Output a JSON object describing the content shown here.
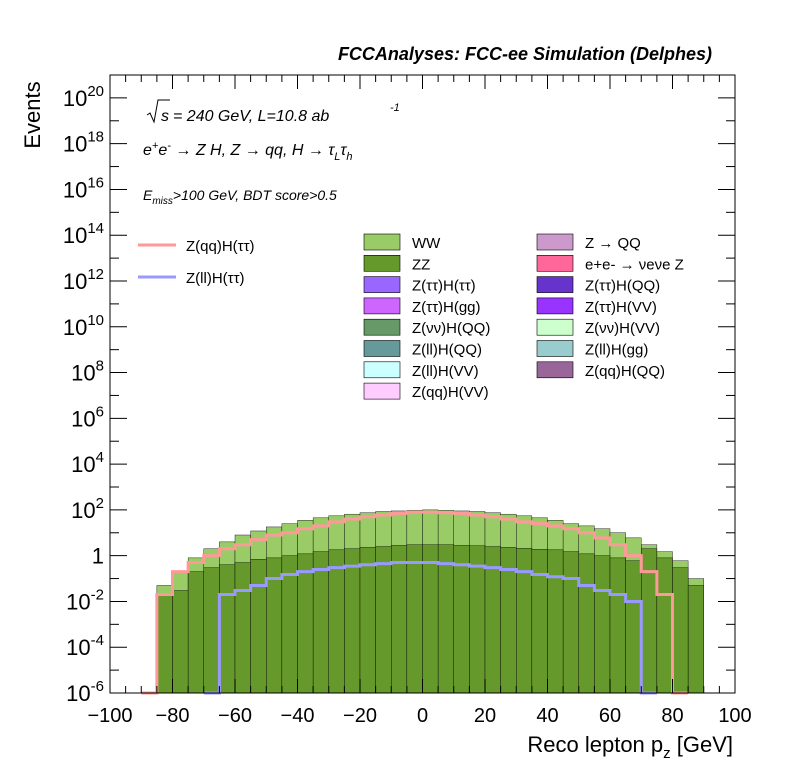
{
  "header": {
    "title": "FCCAnalyses: FCC-ee Simulation (Delphes)"
  },
  "annotations": {
    "sqrt_s": "s",
    "energy_lumi": "= 240 GeV, L=10.8 ab",
    "lumi_exp": "-1",
    "process_line": "e+e- → Z H, Z → qq, H → τLτh",
    "cuts": "Emiss>100 GeV, BDT score>0.5"
  },
  "legend_left": [
    {
      "label": "Z(qq)H(ττ)",
      "color": "#ff9999"
    },
    {
      "label": "Z(ll)H(ττ)",
      "color": "#9999ff"
    }
  ],
  "legend_mid": [
    {
      "label": "WW",
      "color": "#99cc66"
    },
    {
      "label": "ZZ",
      "color": "#66992b"
    },
    {
      "label": "Z(ττ)H(ττ)",
      "color": "#9966ff"
    },
    {
      "label": "Z(ττ)H(gg)",
      "color": "#cc66ff"
    },
    {
      "label": "Z(νν)H(QQ)",
      "color": "#669966"
    },
    {
      "label": "Z(ll)H(QQ)",
      "color": "#669999"
    },
    {
      "label": "Z(ll)H(VV)",
      "color": "#ccffff"
    },
    {
      "label": "Z(qq)H(VV)",
      "color": "#ffccff"
    }
  ],
  "legend_right": [
    {
      "label": "Z → QQ",
      "color": "#cc99cc"
    },
    {
      "label": "e+e- → νeνe Z",
      "color": "#ff6699"
    },
    {
      "label": "Z(ττ)H(QQ)",
      "color": "#6633cc"
    },
    {
      "label": "Z(ττ)H(VV)",
      "color": "#9933ff"
    },
    {
      "label": "Z(νν)H(VV)",
      "color": "#ccffcc"
    },
    {
      "label": "Z(ll)H(gg)",
      "color": "#99cccc"
    },
    {
      "label": "Z(qq)H(QQ)",
      "color": "#996699"
    }
  ],
  "chart_data": {
    "type": "area",
    "style": "stacked histogram with signal overlay lines",
    "xlabel": "Reco lepton p",
    "xlabel_sub": "z",
    "xlabel_unit": " [GeV]",
    "ylabel": "Events",
    "x_range": [
      -100,
      100
    ],
    "y_range": [
      1e-06,
      1e+21
    ],
    "y_scale": "log",
    "x_ticks": [
      "−100",
      "−80",
      "−60",
      "−40",
      "−20",
      "0",
      "20",
      "40",
      "60",
      "80",
      "100"
    ],
    "y_ticks": [
      {
        "base": "10",
        "exp": "20",
        "value": 1e+20
      },
      {
        "base": "10",
        "exp": "18",
        "value": 1e+18
      },
      {
        "base": "10",
        "exp": "16",
        "value": 1e+16
      },
      {
        "base": "10",
        "exp": "14",
        "value": 100000000000000.0
      },
      {
        "base": "10",
        "exp": "12",
        "value": 1000000000000.0
      },
      {
        "base": "10",
        "exp": "10",
        "value": 10000000000.0
      },
      {
        "base": "10",
        "exp": "8",
        "value": 100000000.0
      },
      {
        "base": "10",
        "exp": "6",
        "value": 1000000.0
      },
      {
        "base": "10",
        "exp": "4",
        "value": 10000.0
      },
      {
        "base": "10",
        "exp": "2",
        "value": 100.0
      },
      {
        "base": "1",
        "exp": "",
        "value": 1
      },
      {
        "base": "10",
        "exp": "-2",
        "value": 0.01
      },
      {
        "base": "10",
        "exp": "-4",
        "value": 0.0001
      },
      {
        "base": "10",
        "exp": "-6",
        "value": 1e-06
      }
    ],
    "bin_edges_note": "40 bins of width 5 GeV from -100 to 100",
    "stack_top_total": [
      1e-06,
      1e-06,
      1e-06,
      0.02,
      0.08,
      0.4,
      1.2,
      2.5,
      5,
      8,
      12,
      18,
      25,
      35,
      45,
      55,
      70,
      80,
      90,
      95,
      100,
      95,
      90,
      80,
      70,
      60,
      50,
      45,
      35,
      25,
      20,
      15,
      10,
      5,
      2.5,
      1.2,
      0.5,
      0.05,
      1e-06,
      1e-06
    ],
    "stack_layers": [
      {
        "name": "ZZ",
        "color": "#66992b",
        "values": [
          1e-06,
          1e-06,
          1e-06,
          0.02,
          0.03,
          0.2,
          0.3,
          0.4,
          0.5,
          0.7,
          0.8,
          1,
          1.2,
          1.5,
          1.8,
          2,
          2.3,
          2.5,
          2.8,
          3,
          3,
          3,
          2.8,
          2.7,
          2.5,
          2.3,
          2.1,
          1.9,
          1.8,
          1.5,
          1.2,
          1,
          0.8,
          0.6,
          2,
          0.8,
          0.3,
          0.05,
          1e-06,
          1e-06
        ]
      },
      {
        "name": "Z(ll)H(gg)",
        "color": "#99cccc",
        "values": [
          1e-06,
          1e-06,
          1e-06,
          1e-06,
          1e-06,
          1e-06,
          0.01,
          0.02,
          0.02,
          0.02,
          0.02,
          0.02,
          0.02,
          0.02,
          0.02,
          0.02,
          0.02,
          0.02,
          0.02,
          0.02,
          0.02,
          0.02,
          0.02,
          0.02,
          0.02,
          0.02,
          0.02,
          0.02,
          0.02,
          0.02,
          0.02,
          0.02,
          0.02,
          0.02,
          0.02,
          0.01,
          1e-06,
          1e-06,
          1e-06,
          1e-06
        ]
      },
      {
        "name": "WW",
        "color": "#99cc66",
        "values": [
          1e-06,
          1e-06,
          1e-06,
          0.05,
          0.2,
          0.8,
          2,
          4,
          8,
          12,
          18,
          25,
          35,
          45,
          55,
          65,
          75,
          85,
          90,
          95,
          100,
          95,
          90,
          85,
          75,
          65,
          55,
          45,
          35,
          25,
          20,
          15,
          10,
          6,
          3,
          1.5,
          0.6,
          0.1,
          1e-06,
          1e-06
        ]
      }
    ],
    "series": [
      {
        "name": "Z(qq)H(ττ)",
        "color": "#ff9999",
        "x": [
          -87.5,
          -82.5,
          -77.5,
          -72.5,
          -67.5,
          -62.5,
          -57.5,
          -52.5,
          -47.5,
          -42.5,
          -37.5,
          -32.5,
          -27.5,
          -22.5,
          -17.5,
          -12.5,
          -7.5,
          -2.5,
          2.5,
          7.5,
          12.5,
          17.5,
          22.5,
          27.5,
          32.5,
          37.5,
          42.5,
          47.5,
          52.5,
          57.5,
          62.5,
          67.5,
          72.5,
          77.5,
          82.5
        ],
        "values": [
          1e-06,
          0.02,
          0.2,
          0.5,
          1,
          2,
          3,
          5,
          8,
          10,
          15,
          20,
          30,
          40,
          50,
          60,
          70,
          80,
          80,
          75,
          70,
          60,
          50,
          40,
          30,
          25,
          20,
          15,
          10,
          6,
          3,
          1,
          0.2,
          0.02,
          1e-06
        ]
      },
      {
        "name": "Z(ll)H(ττ)",
        "color": "#9999ff",
        "x": [
          -67.5,
          -62.5,
          -57.5,
          -52.5,
          -47.5,
          -42.5,
          -37.5,
          -32.5,
          -27.5,
          -22.5,
          -17.5,
          -12.5,
          -7.5,
          -2.5,
          2.5,
          7.5,
          12.5,
          17.5,
          22.5,
          27.5,
          32.5,
          37.5,
          42.5,
          47.5,
          52.5,
          57.5,
          62.5,
          67.5,
          72.5
        ],
        "values": [
          1e-06,
          0.02,
          0.03,
          0.05,
          0.1,
          0.15,
          0.2,
          0.25,
          0.3,
          0.35,
          0.4,
          0.45,
          0.5,
          0.5,
          0.5,
          0.45,
          0.4,
          0.35,
          0.3,
          0.25,
          0.2,
          0.15,
          0.12,
          0.1,
          0.05,
          0.03,
          0.02,
          0.01,
          1e-06
        ]
      }
    ]
  }
}
